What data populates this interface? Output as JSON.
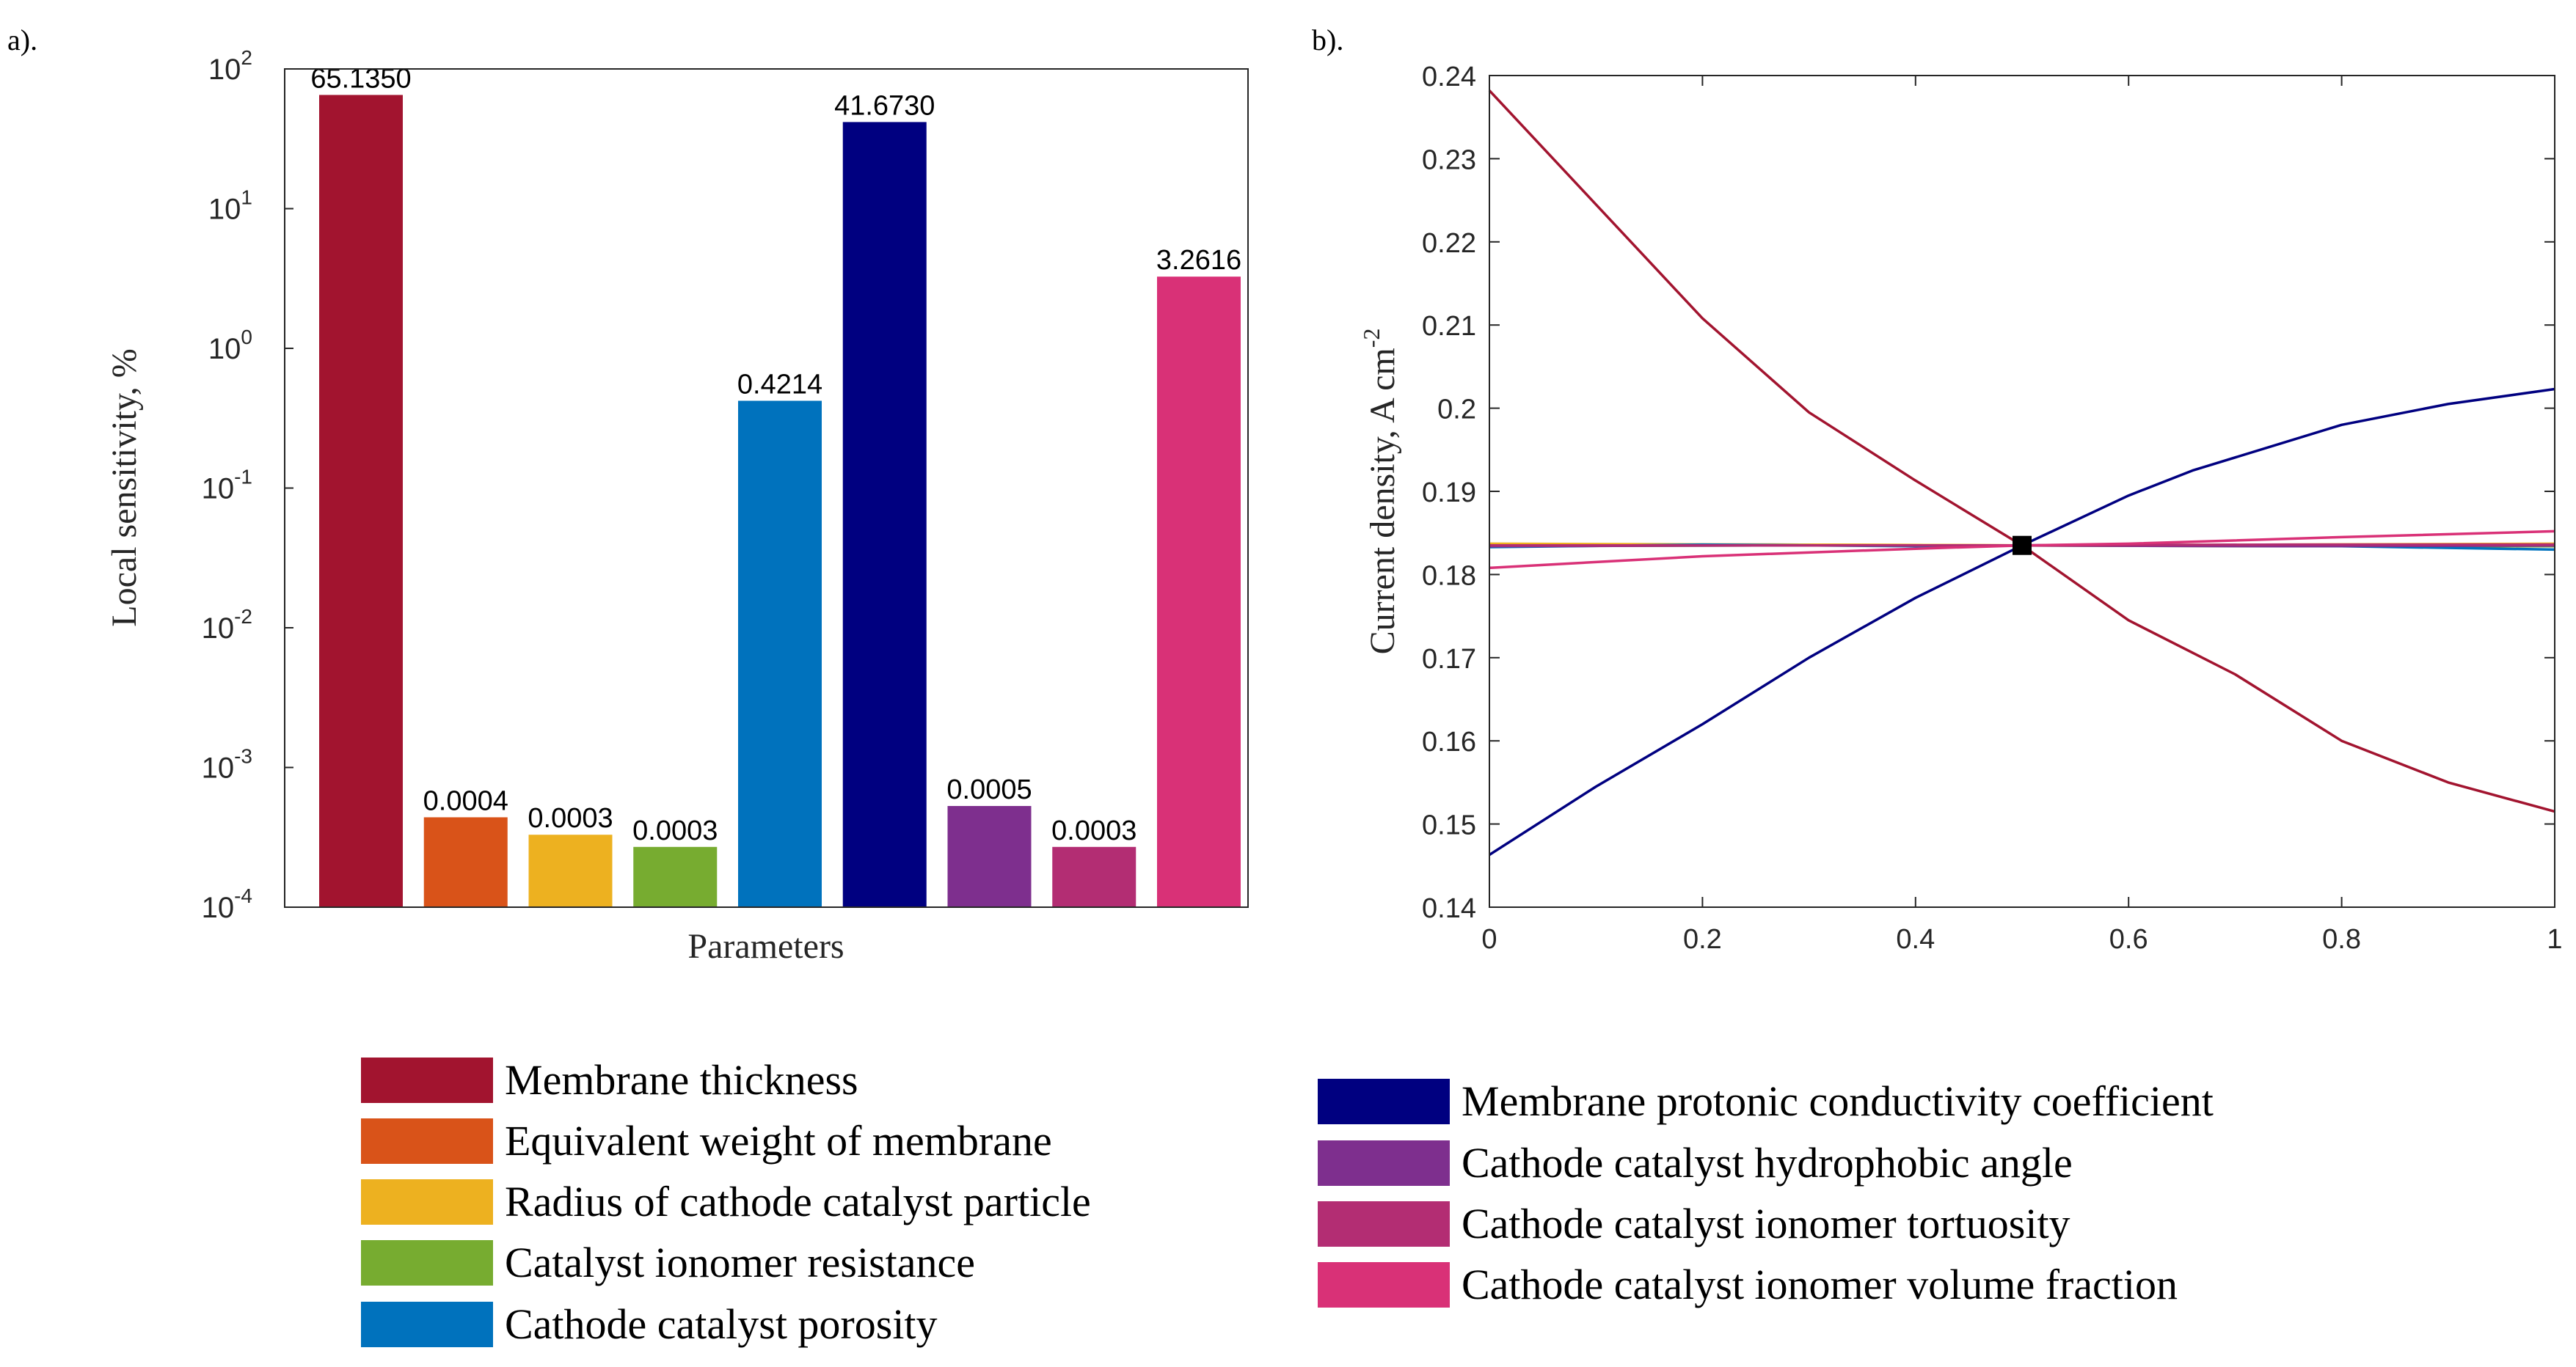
{
  "panels": {
    "a_label": "a).",
    "b_label": "b)."
  },
  "chart_data": [
    {
      "type": "bar",
      "yscale": "log",
      "title": "",
      "xlabel": "Parameters",
      "ylabel": "Local sensitivity, %",
      "ylim": [
        0.0001,
        100
      ],
      "ytick_bases": [
        "10",
        "10",
        "10",
        "10",
        "10",
        "10",
        "10"
      ],
      "ytick_exponents": [
        "-4",
        "-3",
        "-2",
        "-1",
        "0",
        "1",
        "2"
      ],
      "ytick_values": [
        0.0001,
        0.001,
        0.01,
        0.1,
        1,
        10,
        100
      ],
      "categories": [
        "Membrane thickness",
        "Equivalent weight of membrane",
        "Radius of cathode catalyst particle",
        "Catalyst ionomer resistance",
        "Cathode catalyst porosity",
        "Membrane protonic conductivity coefficient",
        "Cathode catalyst hydrophobic angle",
        "Cathode catalyst ionomer tortuosity",
        "Cathode catalyst ionomer volume fraction"
      ],
      "values": [
        65.135,
        0.00044,
        0.00033,
        0.00027,
        0.4214,
        41.673,
        0.00053,
        0.00027,
        3.2616
      ],
      "data_labels": [
        "65.1350",
        "0.0004",
        "0.0003",
        "0.0003",
        "0.4214",
        "41.6730",
        "0.0005",
        "0.0003",
        "3.2616"
      ],
      "colors": [
        "#A2142F",
        "#D95319",
        "#EDB120",
        "#77AC30",
        "#0072BD",
        "#000080",
        "#7E2F8E",
        "#B32D73",
        "#D93177"
      ]
    },
    {
      "type": "line",
      "title": "",
      "xlabel": "",
      "ylabel_main": "Current density, A cm",
      "ylabel_sup": "-2",
      "xlim": [
        0,
        1
      ],
      "ylim": [
        0.14,
        0.24
      ],
      "xticks": [
        "0",
        "0.2",
        "0.4",
        "0.6",
        "0.8",
        "1"
      ],
      "xtick_values": [
        0,
        0.2,
        0.4,
        0.6,
        0.8,
        1
      ],
      "yticks": [
        "0.14",
        "0.15",
        "0.16",
        "0.17",
        "0.18",
        "0.19",
        "0.2",
        "0.21",
        "0.22",
        "0.23",
        "0.24"
      ],
      "ytick_values": [
        0.14,
        0.15,
        0.16,
        0.17,
        0.18,
        0.19,
        0.2,
        0.21,
        0.22,
        0.23,
        0.24
      ],
      "marker": {
        "x": 0.5,
        "y": 0.1835,
        "shape": "square",
        "color": "#000000"
      },
      "series": [
        {
          "name": "Membrane thickness",
          "color": "#A2142F",
          "x": [
            0,
            0.1,
            0.2,
            0.3,
            0.4,
            0.5,
            0.6,
            0.7,
            0.8,
            0.9,
            1.0
          ],
          "y": [
            0.2382,
            0.2245,
            0.2108,
            0.1995,
            0.1913,
            0.1835,
            0.1745,
            0.168,
            0.16,
            0.155,
            0.1515
          ]
        },
        {
          "name": "Equivalent weight of membrane",
          "color": "#D95319",
          "x": [
            0,
            0.25,
            0.5,
            0.75,
            1.0
          ],
          "y": [
            0.1836,
            0.1836,
            0.1835,
            0.1835,
            0.1836
          ]
        },
        {
          "name": "Radius of cathode catalyst particle",
          "color": "#EDB120",
          "x": [
            0,
            0.25,
            0.5,
            0.75,
            1.0
          ],
          "y": [
            0.1837,
            0.1836,
            0.1835,
            0.1836,
            0.1837
          ]
        },
        {
          "name": "Catalyst ionomer resistance",
          "color": "#77AC30",
          "x": [
            0,
            0.25,
            0.5,
            0.75,
            1.0
          ],
          "y": [
            0.1834,
            0.1835,
            0.1835,
            0.1834,
            0.1834
          ]
        },
        {
          "name": "Cathode catalyst porosity",
          "color": "#0072BD",
          "x": [
            0,
            0.2,
            0.4,
            0.5,
            0.6,
            0.8,
            1.0
          ],
          "y": [
            0.1833,
            0.1836,
            0.1834,
            0.1835,
            0.1836,
            0.1834,
            0.183
          ]
        },
        {
          "name": "Membrane protonic conductivity coefficient",
          "color": "#000080",
          "x": [
            0,
            0.1,
            0.2,
            0.3,
            0.4,
            0.5,
            0.6,
            0.66,
            0.8,
            0.9,
            1.0
          ],
          "y": [
            0.1463,
            0.1545,
            0.162,
            0.17,
            0.1772,
            0.1835,
            0.1895,
            0.1925,
            0.198,
            0.2005,
            0.2023
          ]
        },
        {
          "name": "Cathode catalyst hydrophobic angle",
          "color": "#7E2F8E",
          "x": [
            0,
            0.25,
            0.5,
            0.75,
            1.0
          ],
          "y": [
            0.1834,
            0.1835,
            0.1835,
            0.1834,
            0.1835
          ]
        },
        {
          "name": "Cathode catalyst ionomer tortuosity",
          "color": "#B32D73",
          "x": [
            0,
            0.25,
            0.5,
            0.75,
            1.0
          ],
          "y": [
            0.1835,
            0.1835,
            0.1835,
            0.1836,
            0.1836
          ]
        },
        {
          "name": "Cathode catalyst ionomer volume fraction",
          "color": "#D93177",
          "x": [
            0,
            0.2,
            0.4,
            0.5,
            0.6,
            0.8,
            1.0
          ],
          "y": [
            0.1808,
            0.1822,
            0.1831,
            0.1835,
            0.1837,
            0.1845,
            0.1852
          ]
        }
      ]
    }
  ]
}
